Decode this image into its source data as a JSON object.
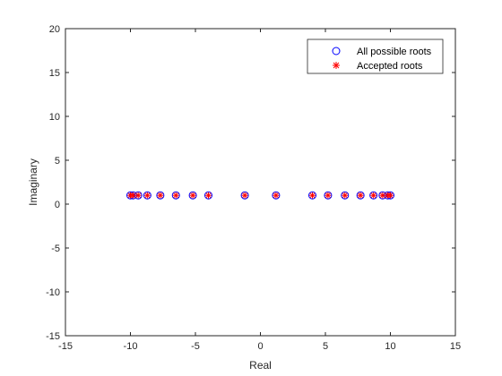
{
  "chart_data": {
    "type": "scatter",
    "xlabel": "Real",
    "ylabel": "Imaginary",
    "xlim": [
      -15,
      15
    ],
    "ylim": [
      -15,
      20
    ],
    "xticks": [
      -15,
      -10,
      -5,
      0,
      5,
      10,
      15
    ],
    "yticks": [
      -15,
      -10,
      -5,
      0,
      5,
      10,
      15,
      20
    ],
    "xtick_labels": [
      "-15",
      "-10",
      "-5",
      "0",
      "5",
      "10",
      "15"
    ],
    "ytick_labels": [
      "-15",
      "-10",
      "-5",
      "0",
      "5",
      "10",
      "15",
      "20"
    ],
    "grid": false,
    "legend_position": "top-right",
    "series": [
      {
        "name": "All possible roots",
        "marker": "circle",
        "color": "#0000ff",
        "x": [
          -10.0,
          -9.8,
          -9.4,
          -8.7,
          -7.7,
          -6.5,
          -5.2,
          -4.0,
          -1.2,
          1.2,
          4.0,
          5.2,
          6.5,
          7.7,
          8.7,
          9.4,
          9.8,
          10.0
        ],
        "y": [
          1,
          1,
          1,
          1,
          1,
          1,
          1,
          1,
          1,
          1,
          1,
          1,
          1,
          1,
          1,
          1,
          1,
          1
        ]
      },
      {
        "name": "Accepted roots",
        "marker": "asterisk",
        "color": "#ff0000",
        "x": [
          -10.0,
          -9.8,
          -9.4,
          -8.7,
          -7.7,
          -6.5,
          -5.2,
          -4.0,
          -1.2,
          1.2,
          4.0,
          5.2,
          6.5,
          7.7,
          8.7,
          9.4,
          9.8,
          10.0
        ],
        "y": [
          1,
          1,
          1,
          1,
          1,
          1,
          1,
          1,
          1,
          1,
          1,
          1,
          1,
          1,
          1,
          1,
          1,
          1
        ]
      }
    ]
  }
}
